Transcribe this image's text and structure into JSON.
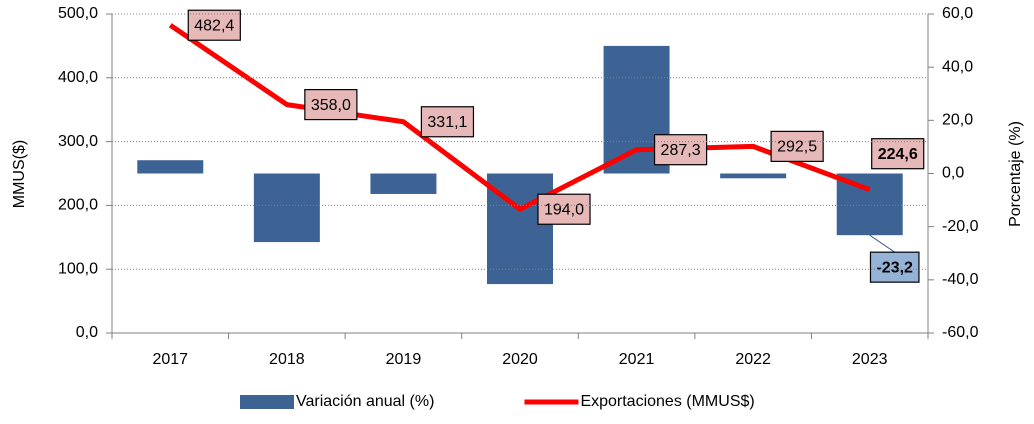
{
  "chart_data": {
    "type": "bar_line",
    "categories": [
      "2017",
      "2018",
      "2019",
      "2020",
      "2021",
      "2022",
      "2023"
    ],
    "series": [
      {
        "name": "Variación anual (%)",
        "type": "bar",
        "axis": "y2",
        "color": "#3d6394",
        "values": [
          5.0,
          -25.8,
          -7.7,
          -41.6,
          48.0,
          -1.8,
          -23.2
        ],
        "value_labels": [
          null,
          null,
          null,
          null,
          null,
          null,
          "-23,2"
        ]
      },
      {
        "name": "Exportaciones (MMUS$)",
        "type": "line",
        "axis": "y",
        "color": "#ff0000",
        "values": [
          482.4,
          358.0,
          331.1,
          194.0,
          287.3,
          292.5,
          224.6
        ],
        "value_labels": [
          "482,4",
          "358,0",
          "331,1",
          "194,0",
          "287,3",
          "292,5",
          "224,6"
        ]
      }
    ],
    "ylabel": "MMUS($)",
    "y2label": "Porcentaje (%)",
    "ylim": [
      0,
      500
    ],
    "yticks": [
      {
        "value": 0,
        "label": "0,0"
      },
      {
        "value": 100,
        "label": "100,0"
      },
      {
        "value": 200,
        "label": "200,0"
      },
      {
        "value": 300,
        "label": "300,0"
      },
      {
        "value": 400,
        "label": "400,0"
      },
      {
        "value": 500,
        "label": "500,0"
      }
    ],
    "y2lim": [
      -60,
      60
    ],
    "y2ticks": [
      {
        "value": -60,
        "label": "-60,0"
      },
      {
        "value": -40,
        "label": "-40,0"
      },
      {
        "value": -20,
        "label": "-20,0"
      },
      {
        "value": 0,
        "label": "0,0"
      },
      {
        "value": 20,
        "label": "20,0"
      },
      {
        "value": 40,
        "label": "40,0"
      },
      {
        "value": 60,
        "label": "60,0"
      }
    ],
    "grid": true,
    "legend": "bottom"
  }
}
